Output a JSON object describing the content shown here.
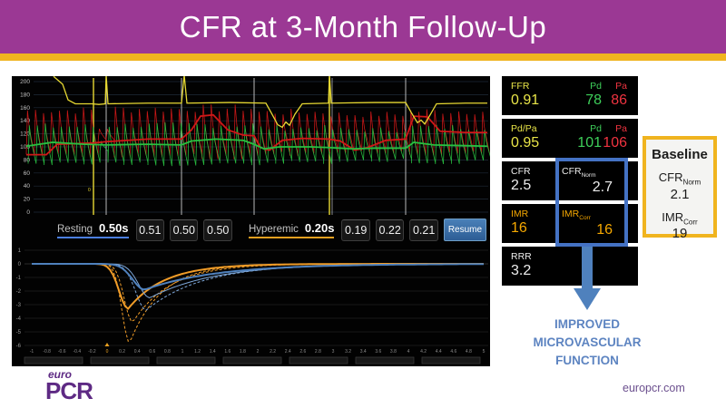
{
  "slide": {
    "title": "CFR at 3-Month Follow-Up",
    "footer_url": "europcr.com",
    "logo_top": "euro",
    "logo_main": "PCR"
  },
  "monitor": {
    "pressure_y_labels": [
      "200",
      "180",
      "160",
      "140",
      "120",
      "100",
      "80",
      "60",
      "40",
      "20",
      "0"
    ],
    "timing": {
      "resting_label": "Resting",
      "resting_time": "0.50s",
      "resting_values": [
        "0.51",
        "0.50",
        "0.50"
      ],
      "hyperemic_label": "Hyperemic",
      "hyperemic_time": "0.20s",
      "hyperemic_values": [
        "0.19",
        "0.22",
        "0.21"
      ],
      "resume_label": "Resume"
    },
    "flow": {
      "y_labels": [
        "1",
        "0",
        "-1",
        "-2",
        "-3",
        "-4",
        "-5",
        "-6"
      ],
      "x_labels": [
        "-1",
        "-0.8",
        "-0.6",
        "-0.4",
        "-0.2",
        "0",
        "0.2",
        "0.4",
        "0.6",
        "0.8",
        "1",
        "1.2",
        "1.4",
        "1.6",
        "1.8",
        "2",
        "2.2",
        "2.4",
        "2.6",
        "2.8",
        "3",
        "3.2",
        "3.4",
        "3.6",
        "3.8",
        "4",
        "4.2",
        "4.4",
        "4.6",
        "4.8",
        "5"
      ],
      "hyperemic_curve_minima": [
        -5.8,
        -4.3,
        -3.3
      ],
      "resting_curve_minima": [
        -3.4,
        -2.5,
        -1.9
      ]
    }
  },
  "panels": {
    "ffr": {
      "label": "FFR",
      "value": "0.91",
      "pd_label": "Pd",
      "pd_value": "78",
      "pa_label": "Pa",
      "pa_value": "86"
    },
    "pdpa": {
      "label": "Pd/Pa",
      "value": "0.95",
      "pd_label": "Pd",
      "pd_value": "101",
      "pa_label": "Pa",
      "pa_value": "106"
    },
    "cfr": {
      "label": "CFR",
      "value": "2.5",
      "norm_label": "CFR",
      "norm_sub": "Norm",
      "norm_value": "2.7"
    },
    "imr": {
      "label": "IMR",
      "value": "16",
      "corr_label": "IMR",
      "corr_sub": "Corr",
      "corr_value": "16"
    },
    "rrr": {
      "label": "RRR",
      "value": "3.2"
    }
  },
  "baseline": {
    "title": "Baseline",
    "cfr_label": "CFR",
    "cfr_sub": "Norm",
    "cfr_value": "2.1",
    "imr_label": "IMR",
    "imr_sub": "Corr",
    "imr_value": "19"
  },
  "annotation": {
    "line1": "IMPROVED",
    "line2": "MICROVASCULAR",
    "line3": "FUNCTION"
  },
  "colors": {
    "header_purple": "#9b3894",
    "gold": "#f0b41f",
    "ffr_yellow": "#e9e548",
    "pd_green": "#3ecf5a",
    "pa_red": "#ef3340",
    "imr_orange": "#f6a800",
    "highlight_blue": "#4472c4",
    "annotation_blue": "#5d84c1",
    "trace_yellow": "#e6d832",
    "trace_red": "#d01818",
    "trace_green": "#28c040",
    "flow_orange": "#f09c28",
    "flow_blue": "#4f81bd"
  }
}
